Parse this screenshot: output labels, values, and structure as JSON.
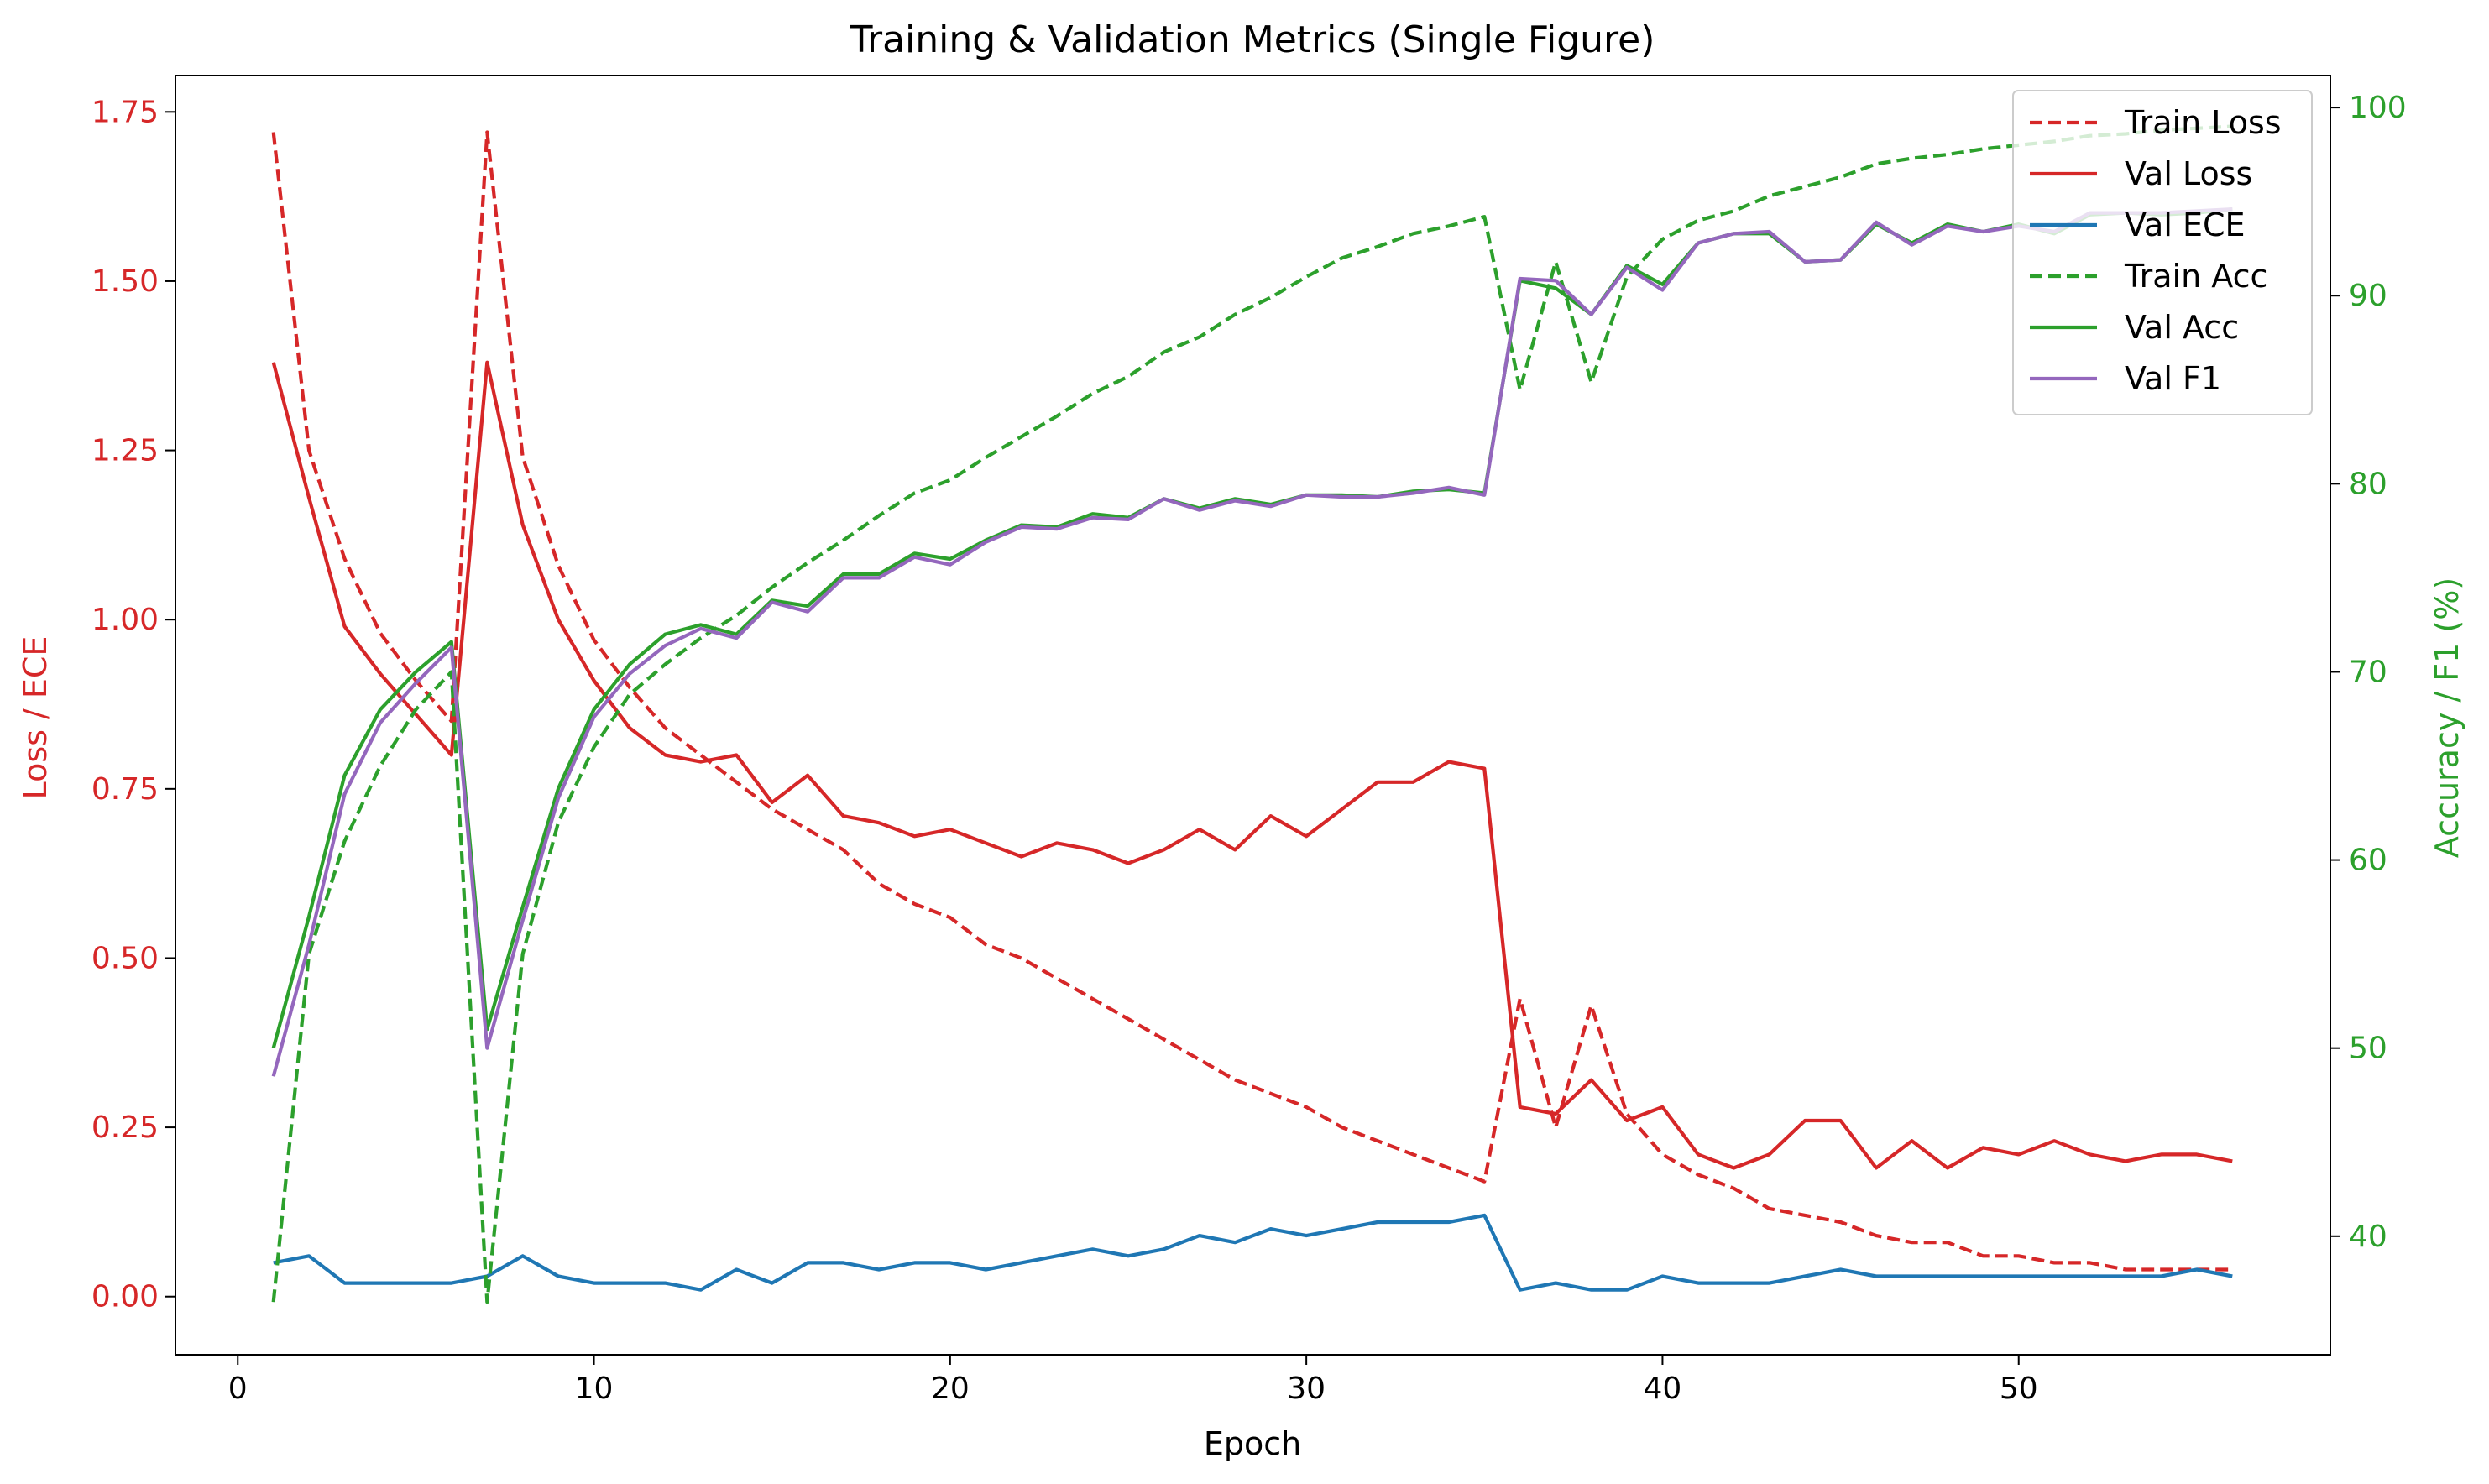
{
  "chart_data": {
    "type": "line",
    "title": "Training & Validation Metrics (Single Figure)",
    "xlabel": "Epoch",
    "ylabel_left": "Loss / ECE",
    "ylabel_right": "Accuracy / F1 (%)",
    "xlim": [
      -1.75,
      58.75
    ],
    "ylim_left": [
      -0.0859,
      1.8037
    ],
    "ylim_right": [
      33.7,
      101.7
    ],
    "x_ticks": [
      0,
      10,
      20,
      30,
      40,
      50
    ],
    "y_ticks_left": [
      "0.00",
      "0.25",
      "0.50",
      "0.75",
      "1.00",
      "1.25",
      "1.50",
      "1.75"
    ],
    "y_ticks_right": [
      "40",
      "50",
      "60",
      "70",
      "80",
      "90",
      "100"
    ],
    "legend_position": "top-right",
    "grid": false,
    "colors": {
      "left_axis": "#d62728",
      "right_axis": "#2ca02c",
      "loss": "#d62728",
      "ece": "#1f77b4",
      "acc": "#2ca02c",
      "f1": "#9467bd"
    },
    "x": [
      1,
      2,
      3,
      4,
      5,
      6,
      7,
      8,
      9,
      10,
      11,
      12,
      13,
      14,
      15,
      16,
      17,
      18,
      19,
      20,
      21,
      22,
      23,
      24,
      25,
      26,
      27,
      28,
      29,
      30,
      31,
      32,
      33,
      34,
      35,
      36,
      37,
      38,
      39,
      40,
      41,
      42,
      43,
      44,
      45,
      46,
      47,
      48,
      49,
      50,
      51,
      52,
      53,
      54,
      55,
      56
    ],
    "series": [
      {
        "name": "Train Loss",
        "axis": "left",
        "color": "#d62728",
        "style": "dashed",
        "values": [
          1.72,
          1.25,
          1.09,
          0.98,
          0.91,
          0.85,
          1.72,
          1.24,
          1.08,
          0.97,
          0.9,
          0.84,
          0.8,
          0.76,
          0.72,
          0.69,
          0.66,
          0.61,
          0.58,
          0.56,
          0.52,
          0.5,
          0.47,
          0.44,
          0.41,
          0.38,
          0.35,
          0.32,
          0.3,
          0.28,
          0.25,
          0.23,
          0.21,
          0.19,
          0.17,
          0.44,
          0.25,
          0.43,
          0.27,
          0.21,
          0.18,
          0.16,
          0.13,
          0.12,
          0.11,
          0.09,
          0.08,
          0.08,
          0.06,
          0.06,
          0.05,
          0.05,
          0.04,
          0.04,
          0.04,
          0.04
        ]
      },
      {
        "name": "Val Loss",
        "axis": "left",
        "color": "#d62728",
        "style": "solid",
        "values": [
          1.38,
          1.18,
          0.99,
          0.92,
          0.86,
          0.8,
          1.38,
          1.14,
          1.0,
          0.91,
          0.84,
          0.8,
          0.79,
          0.8,
          0.73,
          0.77,
          0.71,
          0.7,
          0.68,
          0.69,
          0.67,
          0.65,
          0.67,
          0.66,
          0.64,
          0.66,
          0.69,
          0.66,
          0.71,
          0.68,
          0.72,
          0.76,
          0.76,
          0.79,
          0.78,
          0.28,
          0.27,
          0.32,
          0.26,
          0.28,
          0.21,
          0.19,
          0.21,
          0.26,
          0.26,
          0.19,
          0.23,
          0.19,
          0.22,
          0.21,
          0.23,
          0.21,
          0.2,
          0.21,
          0.21,
          0.2
        ]
      },
      {
        "name": "Val ECE",
        "axis": "left",
        "color": "#1f77b4",
        "style": "solid",
        "values": [
          0.05,
          0.06,
          0.02,
          0.02,
          0.02,
          0.02,
          0.03,
          0.06,
          0.03,
          0.02,
          0.02,
          0.02,
          0.01,
          0.04,
          0.02,
          0.05,
          0.05,
          0.04,
          0.05,
          0.05,
          0.04,
          0.05,
          0.06,
          0.07,
          0.06,
          0.07,
          0.09,
          0.08,
          0.1,
          0.09,
          0.1,
          0.11,
          0.11,
          0.11,
          0.12,
          0.01,
          0.02,
          0.01,
          0.01,
          0.03,
          0.02,
          0.02,
          0.02,
          0.03,
          0.04,
          0.03,
          0.03,
          0.03,
          0.03,
          0.03,
          0.03,
          0.03,
          0.03,
          0.03,
          0.04,
          0.03
        ]
      },
      {
        "name": "Train Acc",
        "axis": "right",
        "color": "#2ca02c",
        "style": "dashed",
        "values": [
          36.5,
          55,
          61,
          65,
          68,
          70,
          36.5,
          55,
          62,
          66,
          68.8,
          70.4,
          71.8,
          73,
          74.5,
          75.8,
          77,
          78.3,
          79.5,
          80.2,
          81.4,
          82.5,
          83.6,
          84.8,
          85.7,
          87,
          87.8,
          89,
          89.9,
          91,
          92,
          92.6,
          93.3,
          93.7,
          94.2,
          85,
          91.8,
          85.4,
          91,
          93,
          94,
          94.5,
          95.3,
          95.8,
          96.3,
          97,
          97.3,
          97.5,
          97.8,
          98,
          98.2,
          98.5,
          98.6,
          98.8,
          98.9,
          99
        ]
      },
      {
        "name": "Val Acc",
        "axis": "right",
        "color": "#2ca02c",
        "style": "solid",
        "values": [
          50,
          57,
          64.5,
          68,
          70,
          71.6,
          51,
          57.5,
          63.8,
          68,
          70.4,
          72,
          72.5,
          72,
          73.8,
          73.5,
          75.2,
          75.2,
          76.3,
          76,
          77,
          77.8,
          77.7,
          78.4,
          78.2,
          79.2,
          78.7,
          79.2,
          78.9,
          79.4,
          79.4,
          79.3,
          79.6,
          79.7,
          79.5,
          90.8,
          90.4,
          89,
          91.6,
          90.6,
          92.8,
          93.3,
          93.3,
          91.8,
          91.9,
          93.8,
          92.8,
          93.8,
          93.4,
          93.8,
          93.3,
          94.3,
          94.4,
          94.3,
          94.4,
          94.6
        ]
      },
      {
        "name": "Val F1",
        "axis": "right",
        "color": "#9467bd",
        "style": "solid",
        "values": [
          48.5,
          55.5,
          63.5,
          67.3,
          69.4,
          71.3,
          50,
          56.8,
          63.3,
          67.6,
          69.9,
          71.4,
          72.3,
          71.8,
          73.7,
          73.2,
          75,
          75,
          76.1,
          75.7,
          76.9,
          77.7,
          77.6,
          78.2,
          78.1,
          79.2,
          78.6,
          79.1,
          78.8,
          79.4,
          79.3,
          79.3,
          79.5,
          79.8,
          79.4,
          90.9,
          90.8,
          89,
          91.5,
          90.3,
          92.8,
          93.3,
          93.4,
          91.8,
          91.9,
          93.9,
          92.7,
          93.7,
          93.4,
          93.7,
          93.4,
          94.4,
          94.4,
          94.4,
          94.5,
          94.6
        ]
      }
    ]
  }
}
